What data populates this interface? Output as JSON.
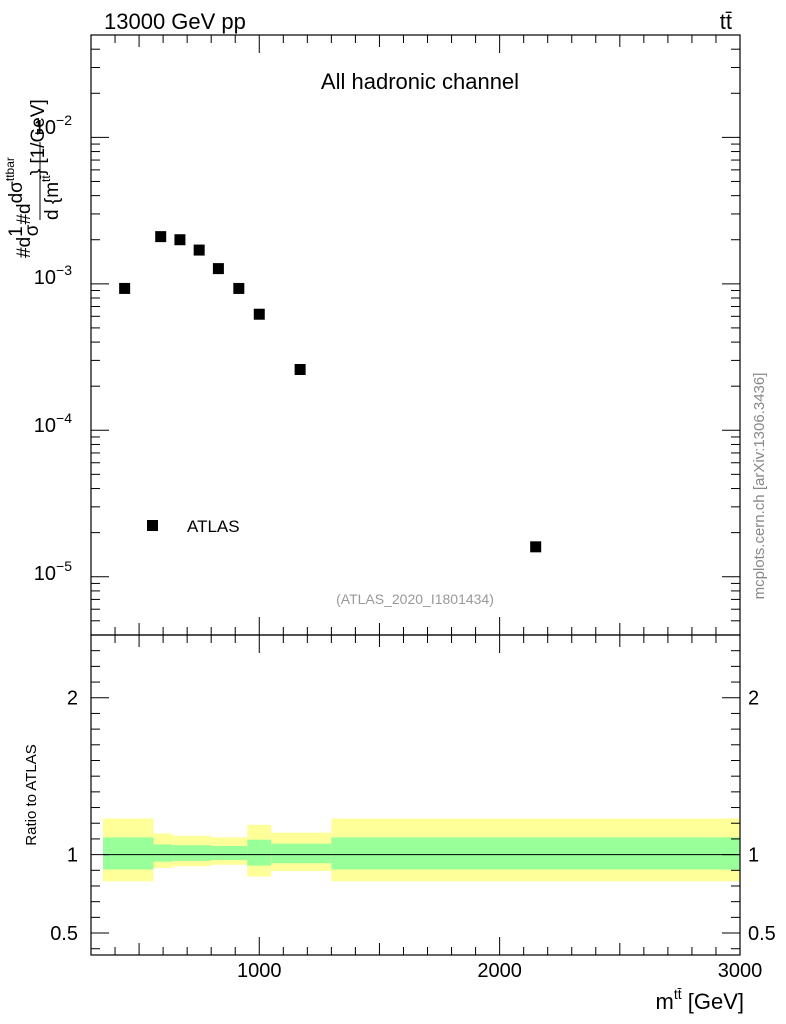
{
  "header": {
    "energy_label": "13000 GeV pp",
    "process_label": "tt̄"
  },
  "side_label": "mcplots.cern.ch [arXiv:1306.3436]",
  "chart_data": [
    {
      "type": "scatter",
      "title": "All hadronic channel",
      "watermark": "(ATLAS_2020_I1801434)",
      "ylabel_parts": {
        "prefix": "#d",
        "one": "1",
        "sigma": "σ",
        "mid": "#d",
        "dsigma": "dσ",
        "sigma_sup": "ttbar",
        "brace_open": "d {m",
        "m_sup": "tt̄",
        "brace_close": "} [1/GeV]"
      },
      "y_scale": "log",
      "ylim": [
        4e-06,
        0.05
      ],
      "xlim": [
        300,
        3000
      ],
      "y_tick_labels": [
        {
          "mant": "10",
          "exp": "−2",
          "value": 0.01
        },
        {
          "mant": "10",
          "exp": "−3",
          "value": 0.001
        },
        {
          "mant": "10",
          "exp": "−4",
          "value": 0.0001
        },
        {
          "mant": "10",
          "exp": "−5",
          "value": 1e-05
        }
      ],
      "legend": {
        "label": "ATLAS",
        "position": "lower-left"
      },
      "series": [
        {
          "name": "ATLAS",
          "color": "#000000",
          "x": [
            440,
            590,
            670,
            750,
            830,
            915,
            1000,
            1170,
            2150
          ],
          "y": [
            0.00093,
            0.0021,
            0.002,
            0.0017,
            0.00127,
            0.00093,
            0.00062,
            0.00026,
            1.6e-05
          ]
        }
      ]
    },
    {
      "type": "area",
      "ylabel": "Ratio to ATLAS",
      "xlabel_parts": {
        "m": "m",
        "sup": "tt̄",
        "unit": " [GeV]"
      },
      "ylim": [
        0.36,
        2.4
      ],
      "xlim": [
        300,
        3000
      ],
      "x_tick_labels": [
        {
          "label": "1000",
          "value": 1000
        },
        {
          "label": "2000",
          "value": 2000
        },
        {
          "label": "3000",
          "value": 3000
        }
      ],
      "y_tick_labels": [
        {
          "label": "2",
          "value": 2
        },
        {
          "label": "1",
          "value": 1
        },
        {
          "label": "0.5",
          "value": 0.5
        }
      ],
      "reference_line": 1.0,
      "colors": {
        "outer_band": "#ffff99",
        "inner_band": "#99ff99"
      },
      "bins": [
        {
          "lo": 350,
          "hi": 560,
          "outer_lo": 0.83,
          "outer_hi": 1.23,
          "inner_lo": 0.905,
          "inner_hi": 1.11
        },
        {
          "lo": 560,
          "hi": 640,
          "outer_lo": 0.915,
          "outer_hi": 1.135,
          "inner_lo": 0.955,
          "inner_hi": 1.065
        },
        {
          "lo": 640,
          "hi": 800,
          "outer_lo": 0.925,
          "outer_hi": 1.12,
          "inner_lo": 0.96,
          "inner_hi": 1.06
        },
        {
          "lo": 800,
          "hi": 950,
          "outer_lo": 0.935,
          "outer_hi": 1.11,
          "inner_lo": 0.965,
          "inner_hi": 1.055
        },
        {
          "lo": 950,
          "hi": 1050,
          "outer_lo": 0.86,
          "outer_hi": 1.19,
          "inner_lo": 0.93,
          "inner_hi": 1.095
        },
        {
          "lo": 1050,
          "hi": 1300,
          "outer_lo": 0.895,
          "outer_hi": 1.14,
          "inner_lo": 0.945,
          "inner_hi": 1.07
        },
        {
          "lo": 1300,
          "hi": 3000,
          "outer_lo": 0.83,
          "outer_hi": 1.23,
          "inner_lo": 0.905,
          "inner_hi": 1.11
        }
      ]
    }
  ]
}
